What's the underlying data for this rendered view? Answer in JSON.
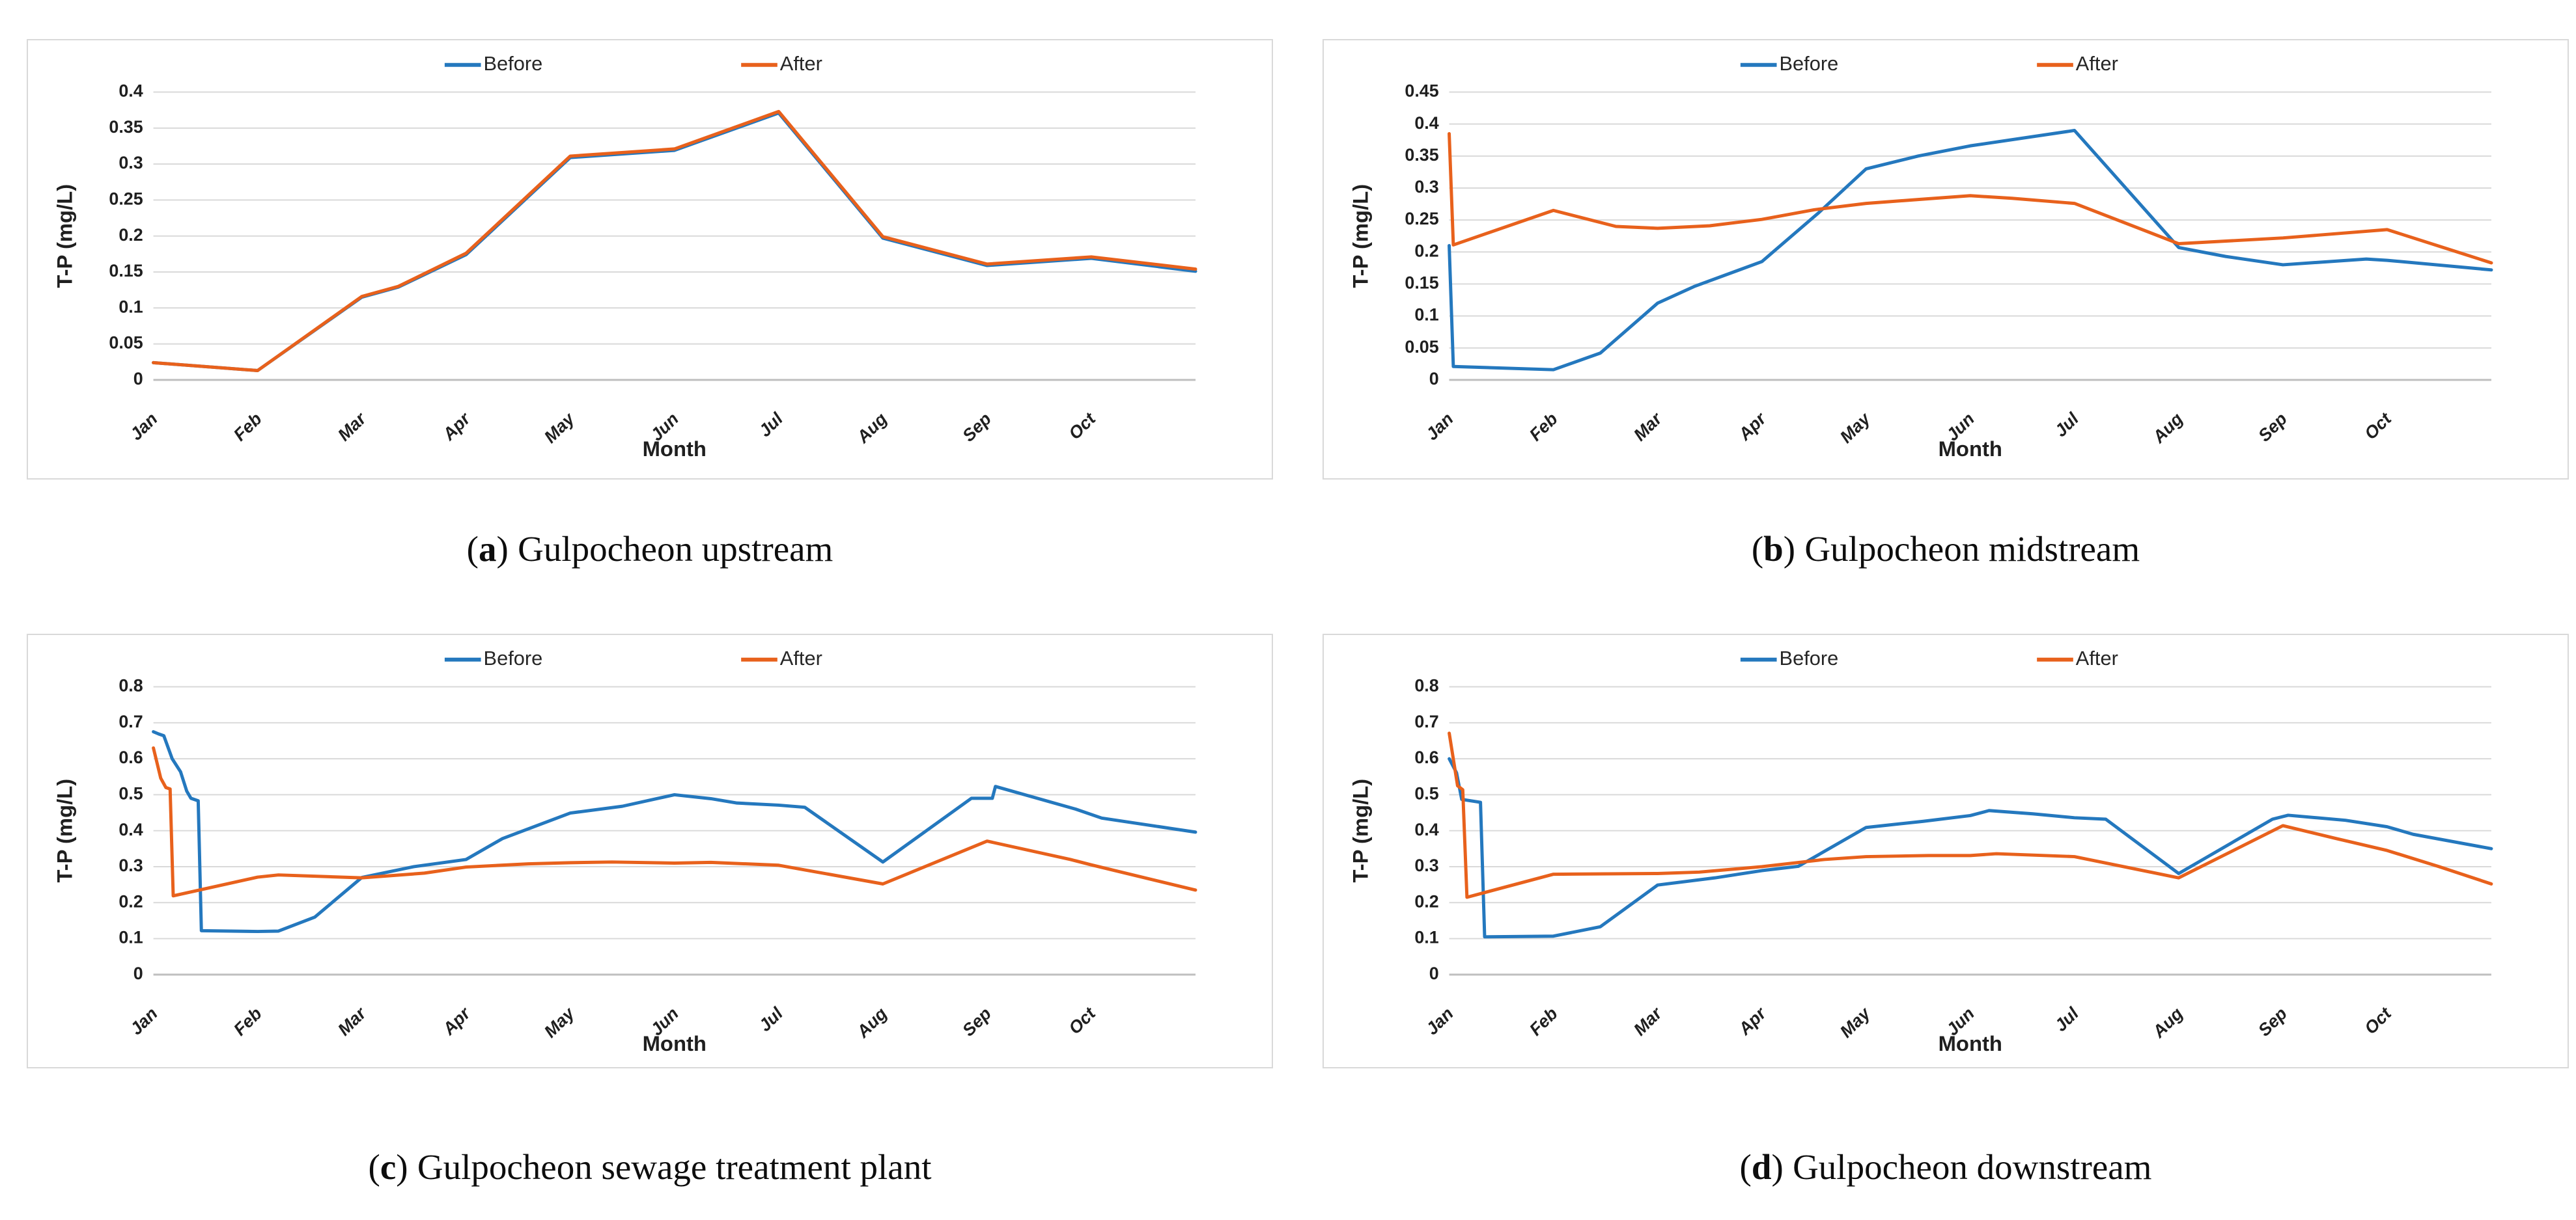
{
  "page": {
    "background": "#ffffff"
  },
  "colors": {
    "before": "#2478BE",
    "after": "#E8611C",
    "gridline": "#D9D9D9",
    "axis_line": "#BFBFBF",
    "tick_text": "#1F1F1F",
    "panel_border": "#D9D9D9",
    "caption_text": "#0D0D0D"
  },
  "captions": [
    {
      "prefix_open": "(",
      "letter": "a",
      "prefix_close": ")",
      "title": "Gulpocheon upstream"
    },
    {
      "prefix_open": "(",
      "letter": "b",
      "prefix_close": ")",
      "title": "Gulpocheon midstream"
    },
    {
      "prefix_open": "(",
      "letter": "c",
      "prefix_close": ")",
      "title": "Gulpocheon sewage treatment plant"
    },
    {
      "prefix_open": "(",
      "letter": "d",
      "prefix_close": ")",
      "title": "Gulpocheon downstream"
    }
  ],
  "chart_data": [
    {
      "id": "a",
      "type": "line",
      "title": "Gulpocheon upstream",
      "xlabel": "Month",
      "ylabel": "T-P (mg/L)",
      "x_tick_labels": [
        "Jan",
        "Feb",
        "Mar",
        "Apr",
        "May",
        "Jun",
        "Jul",
        "Aug",
        "Sep",
        "Oct"
      ],
      "x_range": [
        1,
        11
      ],
      "ylim": [
        0,
        0.4
      ],
      "ytick_step": 0.05,
      "grid": true,
      "legend_position": "top-center",
      "legend": [
        "Before",
        "After"
      ],
      "series": [
        {
          "name": "Before",
          "color_key": "before",
          "points": [
            [
              1,
              0.024
            ],
            [
              2,
              0.013
            ],
            [
              3,
              0.115
            ],
            [
              3.35,
              0.129
            ],
            [
              4,
              0.174
            ],
            [
              5,
              0.309
            ],
            [
              6,
              0.319
            ],
            [
              7,
              0.371
            ],
            [
              8,
              0.197
            ],
            [
              9,
              0.159
            ],
            [
              10,
              0.169
            ],
            [
              11,
              0.151
            ]
          ]
        },
        {
          "name": "After",
          "color_key": "after",
          "points": [
            [
              1,
              0.024
            ],
            [
              2,
              0.013
            ],
            [
              3,
              0.116
            ],
            [
              3.35,
              0.13
            ],
            [
              4,
              0.176
            ],
            [
              5,
              0.311
            ],
            [
              6,
              0.321
            ],
            [
              7,
              0.373
            ],
            [
              8,
              0.199
            ],
            [
              9,
              0.161
            ],
            [
              10,
              0.171
            ],
            [
              11,
              0.154
            ]
          ]
        }
      ]
    },
    {
      "id": "b",
      "type": "line",
      "title": "Gulpocheon midstream",
      "xlabel": "Month",
      "ylabel": "T-P (mg/L)",
      "x_tick_labels": [
        "Jan",
        "Feb",
        "Mar",
        "Apr",
        "May",
        "Jun",
        "Jul",
        "Aug",
        "Sep",
        "Oct"
      ],
      "x_range": [
        1,
        11
      ],
      "ylim": [
        0,
        0.45
      ],
      "ytick_step": 0.05,
      "grid": true,
      "legend_position": "top-center",
      "legend": [
        "Before",
        "After"
      ],
      "series": [
        {
          "name": "Before",
          "color_key": "before",
          "points": [
            [
              1,
              0.21
            ],
            [
              1.04,
              0.021
            ],
            [
              2,
              0.016
            ],
            [
              2.45,
              0.042
            ],
            [
              3,
              0.12
            ],
            [
              3.35,
              0.146
            ],
            [
              4,
              0.185
            ],
            [
              4.55,
              0.262
            ],
            [
              5,
              0.33
            ],
            [
              5.5,
              0.35
            ],
            [
              6,
              0.366
            ],
            [
              7,
              0.39
            ],
            [
              8,
              0.207
            ],
            [
              8.45,
              0.193
            ],
            [
              9,
              0.18
            ],
            [
              9.8,
              0.189
            ],
            [
              10,
              0.187
            ],
            [
              11,
              0.172
            ]
          ]
        },
        {
          "name": "After",
          "color_key": "after",
          "points": [
            [
              1,
              0.385
            ],
            [
              1.04,
              0.211
            ],
            [
              2,
              0.265
            ],
            [
              2.6,
              0.24
            ],
            [
              3,
              0.237
            ],
            [
              3.5,
              0.241
            ],
            [
              4,
              0.251
            ],
            [
              4.5,
              0.266
            ],
            [
              5,
              0.276
            ],
            [
              5.5,
              0.282
            ],
            [
              6,
              0.288
            ],
            [
              6.4,
              0.284
            ],
            [
              7,
              0.276
            ],
            [
              8,
              0.213
            ],
            [
              9,
              0.222
            ],
            [
              10,
              0.235
            ],
            [
              11,
              0.183
            ]
          ]
        }
      ]
    },
    {
      "id": "c",
      "type": "line",
      "title": "Gulpocheon sewage treatment plant",
      "xlabel": "Month",
      "ylabel": "T-P (mg/L)",
      "x_tick_labels": [
        "Jan",
        "Feb",
        "Mar",
        "Apr",
        "May",
        "Jun",
        "Jul",
        "Aug",
        "Sep",
        "Oct"
      ],
      "x_range": [
        1,
        11
      ],
      "ylim": [
        0,
        0.8
      ],
      "ytick_step": 0.1,
      "grid": true,
      "legend_position": "top-center",
      "legend": [
        "Before",
        "After"
      ],
      "series": [
        {
          "name": "Before",
          "color_key": "before",
          "points": [
            [
              1,
              0.675
            ],
            [
              1.05,
              0.669
            ],
            [
              1.1,
              0.664
            ],
            [
              1.18,
              0.6
            ],
            [
              1.26,
              0.564
            ],
            [
              1.32,
              0.51
            ],
            [
              1.36,
              0.49
            ],
            [
              1.43,
              0.483
            ],
            [
              1.46,
              0.122
            ],
            [
              2,
              0.12
            ],
            [
              2.2,
              0.121
            ],
            [
              2.55,
              0.16
            ],
            [
              3,
              0.27
            ],
            [
              3.5,
              0.3
            ],
            [
              4,
              0.32
            ],
            [
              4.35,
              0.378
            ],
            [
              5,
              0.449
            ],
            [
              5.5,
              0.468
            ],
            [
              6,
              0.5
            ],
            [
              6.35,
              0.489
            ],
            [
              6.6,
              0.477
            ],
            [
              7,
              0.471
            ],
            [
              7.25,
              0.465
            ],
            [
              8,
              0.313
            ],
            [
              8.85,
              0.49
            ],
            [
              9.05,
              0.49
            ],
            [
              9.08,
              0.523
            ],
            [
              9.85,
              0.46
            ],
            [
              10.1,
              0.435
            ],
            [
              11,
              0.396
            ]
          ]
        },
        {
          "name": "After",
          "color_key": "after",
          "points": [
            [
              1,
              0.63
            ],
            [
              1.07,
              0.546
            ],
            [
              1.12,
              0.52
            ],
            [
              1.16,
              0.516
            ],
            [
              1.19,
              0.219
            ],
            [
              2,
              0.271
            ],
            [
              2.2,
              0.277
            ],
            [
              3,
              0.269
            ],
            [
              3.6,
              0.282
            ],
            [
              4,
              0.299
            ],
            [
              4.6,
              0.308
            ],
            [
              5,
              0.311
            ],
            [
              5.4,
              0.313
            ],
            [
              6,
              0.31
            ],
            [
              6.35,
              0.312
            ],
            [
              7,
              0.304
            ],
            [
              8,
              0.252
            ],
            [
              9,
              0.371
            ],
            [
              9.8,
              0.32
            ],
            [
              10,
              0.305
            ],
            [
              11,
              0.235
            ]
          ]
        }
      ]
    },
    {
      "id": "d",
      "type": "line",
      "title": "Gulpocheon downstream",
      "xlabel": "Month",
      "ylabel": "T-P (mg/L)",
      "x_tick_labels": [
        "Jan",
        "Feb",
        "Mar",
        "Apr",
        "May",
        "Jun",
        "Jul",
        "Aug",
        "Sep",
        "Oct"
      ],
      "x_range": [
        1,
        11
      ],
      "ylim": [
        0,
        0.8
      ],
      "ytick_step": 0.1,
      "grid": true,
      "legend_position": "top-center",
      "legend": [
        "Before",
        "After"
      ],
      "series": [
        {
          "name": "Before",
          "color_key": "before",
          "points": [
            [
              1,
              0.6
            ],
            [
              1.07,
              0.561
            ],
            [
              1.12,
              0.487
            ],
            [
              1.3,
              0.479
            ],
            [
              1.34,
              0.105
            ],
            [
              2,
              0.107
            ],
            [
              2.45,
              0.133
            ],
            [
              3,
              0.249
            ],
            [
              3.55,
              0.269
            ],
            [
              4,
              0.289
            ],
            [
              4.35,
              0.301
            ],
            [
              5,
              0.409
            ],
            [
              5.55,
              0.426
            ],
            [
              6,
              0.442
            ],
            [
              6.18,
              0.456
            ],
            [
              6.6,
              0.447
            ],
            [
              7,
              0.436
            ],
            [
              7.3,
              0.432
            ],
            [
              8,
              0.281
            ],
            [
              8.9,
              0.432
            ],
            [
              9.05,
              0.443
            ],
            [
              9.6,
              0.429
            ],
            [
              10,
              0.411
            ],
            [
              10.25,
              0.39
            ],
            [
              11,
              0.35
            ]
          ]
        },
        {
          "name": "After",
          "color_key": "after",
          "points": [
            [
              1,
              0.671
            ],
            [
              1.08,
              0.525
            ],
            [
              1.13,
              0.514
            ],
            [
              1.17,
              0.215
            ],
            [
              2,
              0.279
            ],
            [
              3,
              0.281
            ],
            [
              3.4,
              0.285
            ],
            [
              4,
              0.3
            ],
            [
              4.6,
              0.32
            ],
            [
              5,
              0.328
            ],
            [
              5.6,
              0.331
            ],
            [
              6,
              0.331
            ],
            [
              6.25,
              0.336
            ],
            [
              7,
              0.328
            ],
            [
              8,
              0.269
            ],
            [
              9,
              0.414
            ],
            [
              9.5,
              0.379
            ],
            [
              10,
              0.345
            ],
            [
              10.5,
              0.3
            ],
            [
              11,
              0.252
            ]
          ]
        }
      ]
    }
  ]
}
